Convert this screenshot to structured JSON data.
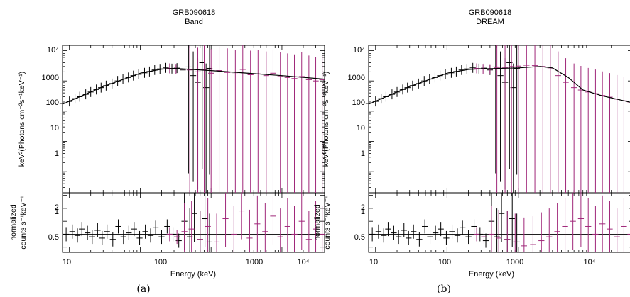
{
  "colors": {
    "instrument_a": "#000000",
    "instrument_b": "#a0287a",
    "model": "#000000"
  },
  "chart_data": [
    {
      "type": "scatter",
      "title": "GRB090618",
      "subtitle": "Band",
      "caption": "(a)",
      "xlabel": "Energy (keV)",
      "xscale": "log",
      "xlim": [
        8,
        40000
      ],
      "x_ticklabels": [
        "10",
        "100",
        "1000",
        "10⁴"
      ],
      "top": {
        "ylabel": "keV²(Photons cm⁻²s⁻¹keV⁻¹)",
        "yscale": "log",
        "ylim": [
          0.2,
          15000
        ],
        "y_ticklabels": [
          "10⁴",
          "1000",
          "100",
          "10",
          "1"
        ],
        "series": [
          {
            "instrument": "a",
            "x": [
              8,
              10,
              12,
              14,
              17,
              20,
              24,
              28,
              33,
              40,
              48,
              57,
              68,
              80,
              95,
              115,
              135,
              160,
              190,
              230,
              280,
              330,
              400,
              480,
              560,
              650,
              750,
              850,
              950
            ],
            "y": [
              180,
              210,
              260,
              300,
              360,
              430,
              520,
              600,
              700,
              820,
              1000,
              1150,
              1300,
              1500,
              1650,
              1850,
              2050,
              2300,
              2500,
              2700,
              2550,
              2650,
              2300,
              2900,
              1500,
              900,
              4000,
              600,
              2600
            ]
          },
          {
            "instrument": "b",
            "x": [
              260,
              320,
              400,
              500,
              650,
              800,
              1000,
              1300,
              1700,
              2200,
              2800,
              3600,
              4600,
              6000,
              7500,
              9500,
              12000,
              15000,
              19000,
              24000,
              30000,
              37000
            ],
            "y": [
              2600,
              2500,
              2450,
              2300,
              2000,
              2400,
              1800,
              2200,
              1900,
              1700,
              2400,
              1600,
              1700,
              1500,
              1800,
              1400,
              1300,
              1200,
              1400,
              1100,
              1000,
              1100
            ]
          }
        ],
        "model": {
          "x": [
            8,
            30,
            100,
            200,
            300,
            1000,
            10000,
            40000
          ],
          "y": [
            170,
            650,
            1800,
            2450,
            2600,
            2200,
            1500,
            1150
          ]
        }
      },
      "bottom": {
        "ylabel_line1": "normalized",
        "ylabel_line2": "counts s⁻¹keV⁻¹",
        "ylim": [
          0.3,
          2.6
        ],
        "y_ticklabels": [
          "2",
          "1",
          "0.5"
        ],
        "series": [
          {
            "instrument": "a",
            "x": [
              9,
              11,
              13,
              15,
              18,
              21,
              25,
              29,
              34,
              41,
              49,
              58,
              69,
              82,
              98,
              118,
              140,
              165,
              200,
              240,
              290,
              350,
              420,
              500,
              580,
              700,
              820,
              950
            ],
            "y": [
              1.0,
              1.1,
              0.95,
              1.2,
              1.05,
              0.9,
              1.15,
              0.85,
              1.1,
              0.8,
              1.3,
              0.9,
              1.05,
              1.2,
              0.85,
              1.1,
              0.95,
              1.25,
              0.9,
              1.3,
              1.0,
              0.75,
              1.5,
              0.9,
              1.8,
              0.8,
              1.6,
              0.7
            ]
          },
          {
            "instrument": "b",
            "x": [
              260,
              330,
              420,
              530,
              700,
              900,
              1200,
              1600,
              2100,
              2700,
              3500,
              4500,
              5800,
              7500,
              9500,
              12000,
              15000,
              19000,
              24000,
              30000,
              37000
            ],
            "y": [
              1.0,
              0.9,
              1.1,
              1.2,
              0.8,
              1.3,
              0.7,
              1.6,
              1.0,
              1.9,
              0.85,
              1.4,
              1.1,
              1.7,
              0.9,
              1.3,
              1.0,
              1.5,
              0.8,
              1.2,
              1.0
            ]
          }
        ]
      }
    },
    {
      "type": "scatter",
      "title": "GRB090618",
      "subtitle": "DREAM",
      "caption": "(b)",
      "xlabel": "Energy (keV)",
      "xscale": "log",
      "xlim": [
        8,
        40000
      ],
      "x_ticklabels": [
        "10",
        "100",
        "1000",
        "10⁴"
      ],
      "top": {
        "ylabel": "keV²(Photons cm⁻²s⁻¹keV⁻¹)",
        "yscale": "log",
        "ylim": [
          0.2,
          15000
        ],
        "y_ticklabels": [
          "10⁴",
          "1000",
          "100",
          "10",
          "1"
        ],
        "series": [
          {
            "instrument": "a",
            "x": [
              8,
              10,
              12,
              14,
              17,
              20,
              24,
              28,
              33,
              40,
              48,
              57,
              68,
              80,
              95,
              115,
              135,
              160,
              190,
              230,
              280,
              330,
              400,
              480,
              560,
              650,
              750,
              850,
              950
            ],
            "y": [
              180,
              210,
              260,
              300,
              360,
              430,
              520,
              600,
              700,
              820,
              1000,
              1150,
              1300,
              1500,
              1650,
              1850,
              2050,
              2300,
              2500,
              2700,
              2550,
              2650,
              2300,
              2900,
              1500,
              900,
              4000,
              600,
              2600
            ]
          },
          {
            "instrument": "b",
            "x": [
              260,
              320,
              400,
              500,
              650,
              800,
              1000,
              1300,
              1700,
              2200,
              2800,
              3600,
              4600,
              6000,
              7500,
              9500,
              12000,
              15000,
              19000,
              24000,
              30000,
              37000
            ],
            "y": [
              2600,
              2500,
              2450,
              2700,
              2800,
              3000,
              3100,
              3300,
              3200,
              3000,
              2500,
              1500,
              900,
              600,
              500,
              430,
              380,
              330,
              290,
              250,
              220,
              200
            ]
          }
        ],
        "model": {
          "x": [
            8,
            30,
            100,
            200,
            300,
            1000,
            2000,
            3000,
            5000,
            8000,
            15000,
            40000
          ],
          "y": [
            170,
            650,
            1800,
            2400,
            2500,
            2700,
            3000,
            2700,
            1300,
            500,
            320,
            190
          ]
        }
      },
      "bottom": {
        "ylabel_line1": "normalized",
        "ylabel_line2": "counts s⁻¹keV⁻¹",
        "ylim": [
          0.3,
          2.6
        ],
        "y_ticklabels": [
          "2",
          "1",
          "0.5"
        ],
        "series": [
          {
            "instrument": "a",
            "x": [
              9,
              11,
              13,
              15,
              18,
              21,
              25,
              29,
              34,
              41,
              49,
              58,
              69,
              82,
              98,
              118,
              140,
              165,
              200,
              240,
              290,
              350,
              420,
              500,
              580,
              700,
              820,
              950
            ],
            "y": [
              1.0,
              1.1,
              0.95,
              1.2,
              1.05,
              0.9,
              1.15,
              0.85,
              1.1,
              0.8,
              1.3,
              0.9,
              1.05,
              1.2,
              0.85,
              1.1,
              0.95,
              1.25,
              0.9,
              1.3,
              1.0,
              0.75,
              1.5,
              0.9,
              1.8,
              0.8,
              1.6,
              0.7
            ]
          },
          {
            "instrument": "b",
            "x": [
              260,
              330,
              420,
              530,
              700,
              900,
              1200,
              1600,
              2100,
              2700,
              3500,
              4500,
              5800,
              7500,
              9500,
              12000,
              15000,
              19000,
              24000,
              30000,
              37000
            ],
            "y": [
              1.0,
              0.9,
              1.0,
              0.85,
              0.8,
              0.7,
              0.55,
              0.6,
              0.75,
              0.9,
              1.1,
              1.3,
              1.5,
              1.6,
              1.3,
              1.0,
              1.4,
              1.2,
              0.9,
              1.3,
              1.0
            ]
          }
        ]
      }
    }
  ]
}
